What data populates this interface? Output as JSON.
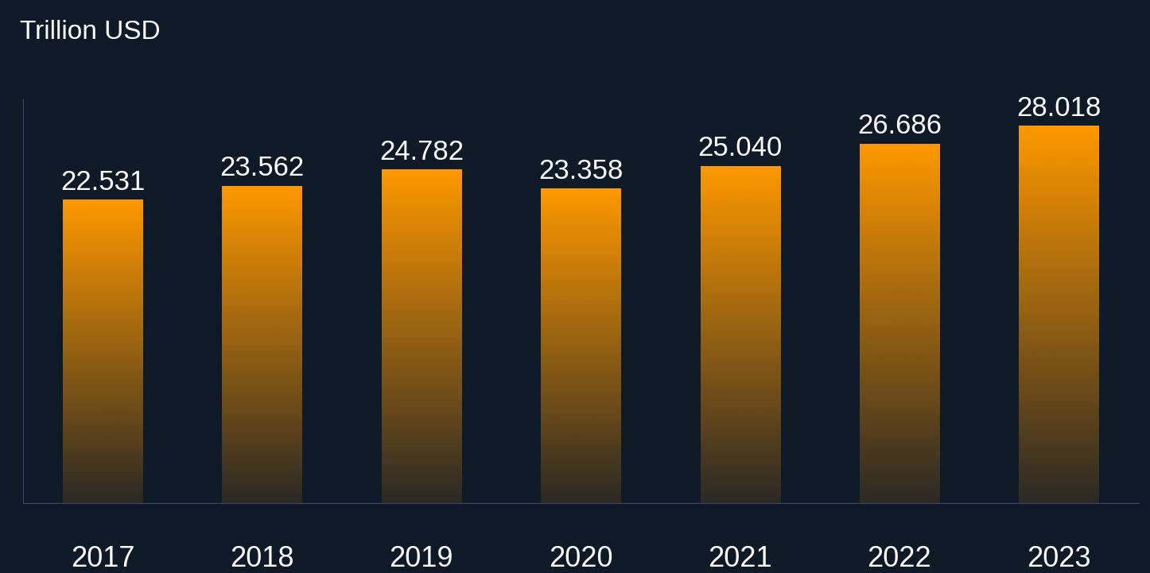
{
  "chart_data": {
    "type": "bar",
    "y_label": "Trillion USD",
    "categories": [
      "2017",
      "2018",
      "2019",
      "2020",
      "2021",
      "2022",
      "2023"
    ],
    "values": [
      22.531,
      23.562,
      24.782,
      23.358,
      25.04,
      26.686,
      28.018
    ],
    "value_labels": [
      "22.531",
      "23.562",
      "24.782",
      "23.358",
      "25.040",
      "26.686",
      "28.018"
    ],
    "color": "#ff9900",
    "ylim": [
      0,
      30
    ],
    "yticks": [],
    "grid": false,
    "data_labels": true,
    "tick_labels": "x"
  }
}
